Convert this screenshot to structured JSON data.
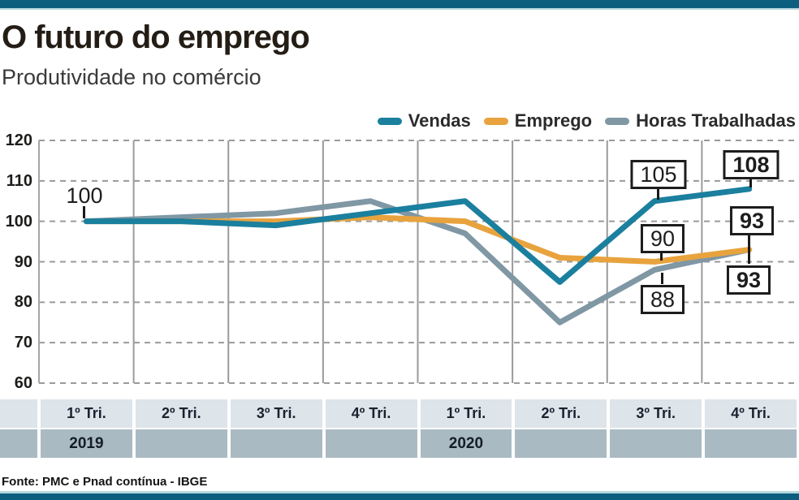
{
  "header": {
    "title": "O futuro do emprego",
    "subtitle": "Produtividade no comércio"
  },
  "legend": {
    "items": [
      {
        "label": "Vendas",
        "color": "#1b7f9e"
      },
      {
        "label": "Emprego",
        "color": "#e8a33e"
      },
      {
        "label": "Horas Trabalhadas",
        "color": "#8097a4"
      }
    ]
  },
  "chart_data": {
    "type": "line",
    "categories": [
      "1º Tri. 2019",
      "2º Tri. 2019",
      "3º Tri. 2019",
      "4º Tri. 2019",
      "1º Tri. 2020",
      "2º Tri. 2020",
      "3º Tri. 2020",
      "4º Tri. 2020"
    ],
    "x_axis": {
      "quarters": [
        "1º Tri.",
        "2º Tri.",
        "3º Tri.",
        "4º Tri.",
        "1º Tri.",
        "2º Tri.",
        "3º Tri.",
        "4º Tri."
      ],
      "years": [
        {
          "label": "2019",
          "start_index": 0
        },
        {
          "label": "2020",
          "start_index": 4
        }
      ]
    },
    "ylim": [
      60,
      120
    ],
    "yticks": [
      120,
      110,
      100,
      90,
      80,
      70,
      60
    ],
    "grid": {
      "horizontal": "dashed",
      "vertical": "solid",
      "color": "#9a9a9a"
    },
    "legend_position": "top-right",
    "series": [
      {
        "name": "Vendas",
        "color": "#1b7f9e",
        "values": [
          100,
          100,
          99,
          102,
          105,
          85,
          105,
          108
        ]
      },
      {
        "name": "Emprego",
        "color": "#e8a33e",
        "values": [
          100,
          100,
          100,
          101,
          100,
          91,
          90,
          93
        ]
      },
      {
        "name": "Horas Trabalhadas",
        "color": "#8097a4",
        "values": [
          100,
          101,
          102,
          105,
          97,
          75,
          88,
          93
        ]
      }
    ],
    "annotations": [
      {
        "text": "100",
        "series": "Vendas",
        "point": "1º Tri. 2019",
        "style": "plain"
      },
      {
        "text": "105",
        "series": "Vendas",
        "point": "3º Tri. 2020",
        "style": "box"
      },
      {
        "text": "108",
        "series": "Vendas",
        "point": "4º Tri. 2020",
        "style": "box-bold"
      },
      {
        "text": "90",
        "series": "Emprego",
        "point": "3º Tri. 2020",
        "style": "box"
      },
      {
        "text": "93",
        "series": "Emprego",
        "point": "4º Tri. 2020",
        "style": "box-bold"
      },
      {
        "text": "88",
        "series": "Horas Trabalhadas",
        "point": "3º Tri. 2020",
        "style": "box"
      },
      {
        "text": "93",
        "series": "Horas Trabalhadas",
        "point": "4º Tri. 2020",
        "style": "box-bold"
      }
    ]
  },
  "source": "Fonte: PMC e Pnad contínua - IBGE",
  "colors": {
    "accent_bar": "#0b5e7e",
    "accent_bar_light": "#b5d8dc",
    "grid": "#9a9a9a",
    "axis": "#a6a6a6",
    "table_quarter_row": "#dde4ea",
    "table_year_row": "#a9bac2"
  }
}
